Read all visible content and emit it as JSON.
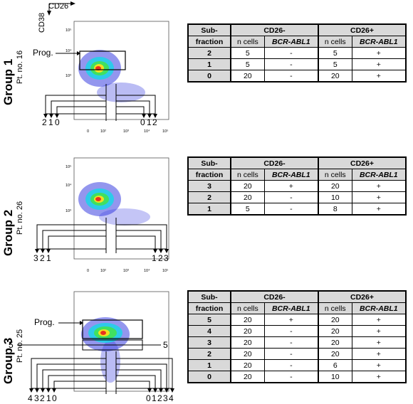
{
  "axes": {
    "x_label": "CD26",
    "y_label": "CD38"
  },
  "tick_labels": {
    "y": [
      "10⁵",
      "10⁴",
      "10³",
      "10²",
      "10",
      "0"
    ],
    "x": [
      "0",
      "10²",
      "10³",
      "10⁴",
      "10⁵"
    ]
  },
  "groups": [
    {
      "title": "Group 1",
      "patient": "Pt. no. 16",
      "prog_label": "Prog.",
      "gate_left": [
        "2",
        "1",
        "0"
      ],
      "gate_right": [
        "0",
        "1",
        "2"
      ],
      "table": {
        "h_sub": "Sub-",
        "h_fraction": "fraction",
        "h_neg": "CD26-",
        "h_pos": "CD26+",
        "h_ncells": "n cells",
        "h_bcr": "BCR-ABL1",
        "rows": [
          {
            "sub": "2",
            "neg_n": "5",
            "neg_b": "-",
            "pos_n": "5",
            "pos_b": "+"
          },
          {
            "sub": "1",
            "neg_n": "5",
            "neg_b": "-",
            "pos_n": "5",
            "pos_b": "+"
          },
          {
            "sub": "0",
            "neg_n": "20",
            "neg_b": "-",
            "pos_n": "20",
            "pos_b": "+"
          }
        ]
      }
    },
    {
      "title": "Group 2",
      "patient": "Pt. no. 26",
      "gate_left": [
        "3",
        "2",
        "1"
      ],
      "gate_right": [
        "1",
        "2",
        "3"
      ],
      "table": {
        "h_sub": "Sub-",
        "h_fraction": "fraction",
        "h_neg": "CD26-",
        "h_pos": "CD26+",
        "h_ncells": "n cells",
        "h_bcr": "BCR-ABL1",
        "rows": [
          {
            "sub": "3",
            "neg_n": "20",
            "neg_b": "+",
            "pos_n": "20",
            "pos_b": "+"
          },
          {
            "sub": "2",
            "neg_n": "20",
            "neg_b": "-",
            "pos_n": "10",
            "pos_b": "+"
          },
          {
            "sub": "1",
            "neg_n": "5",
            "neg_b": "-",
            "pos_n": "8",
            "pos_b": "+"
          }
        ]
      }
    },
    {
      "title": "Group 3",
      "patient": "Pt. no. 25",
      "prog_label": "Prog.",
      "five_left": "5",
      "five_right": "5",
      "gate_left": [
        "4",
        "3",
        "2",
        "1",
        "0"
      ],
      "gate_right": [
        "0",
        "1",
        "2",
        "3",
        "4"
      ],
      "table": {
        "h_sub": "Sub-",
        "h_fraction": "fraction",
        "h_neg": "CD26-",
        "h_pos": "CD26+",
        "h_ncells": "n cells",
        "h_bcr": "BCR-ABL1",
        "rows": [
          {
            "sub": "5",
            "neg_n": "20",
            "neg_b": "+",
            "pos_n": "20",
            "pos_b": "+"
          },
          {
            "sub": "4",
            "neg_n": "20",
            "neg_b": "-",
            "pos_n": "20",
            "pos_b": "+"
          },
          {
            "sub": "3",
            "neg_n": "20",
            "neg_b": "-",
            "pos_n": "20",
            "pos_b": "+"
          },
          {
            "sub": "2",
            "neg_n": "20",
            "neg_b": "-",
            "pos_n": "20",
            "pos_b": "+"
          },
          {
            "sub": "1",
            "neg_n": "20",
            "neg_b": "-",
            "pos_n": "6",
            "pos_b": "+"
          },
          {
            "sub": "0",
            "neg_n": "20",
            "neg_b": "-",
            "pos_n": "10",
            "pos_b": "+"
          }
        ]
      }
    }
  ]
}
